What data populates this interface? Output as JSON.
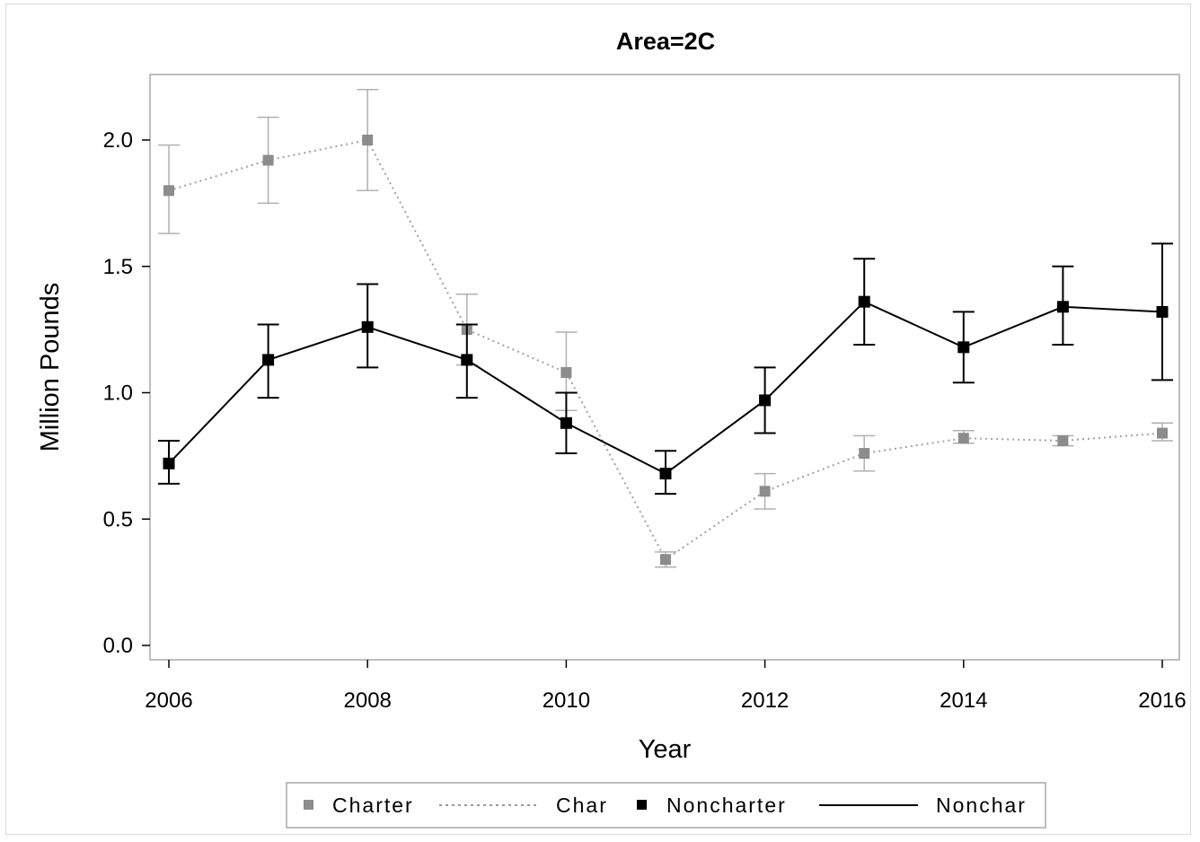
{
  "chart_data": {
    "type": "line",
    "title": "Area=2C",
    "xlabel": "Year",
    "ylabel": "Million Pounds",
    "xlim": [
      2006,
      2016
    ],
    "ylim": [
      0.0,
      2.2
    ],
    "xticks": [
      "2006",
      "2008",
      "2010",
      "2012",
      "2014",
      "2016"
    ],
    "yticks": [
      "0.0",
      "0.5",
      "1.0",
      "1.5",
      "2.0"
    ],
    "x": [
      2006,
      2007,
      2008,
      2009,
      2010,
      2011,
      2012,
      2013,
      2014,
      2015,
      2016
    ],
    "grid": false,
    "legend_position": "bottom",
    "series": [
      {
        "name": "Charter",
        "line_name": "Char",
        "color": "#8c8c8c",
        "errorbar_color": "#b0b0b0",
        "line_style": "dotted",
        "values": [
          1.8,
          1.92,
          2.0,
          1.25,
          1.08,
          0.34,
          0.61,
          0.76,
          0.82,
          0.81,
          0.84
        ],
        "lower": [
          1.63,
          1.75,
          1.8,
          1.11,
          0.93,
          0.31,
          0.54,
          0.69,
          0.8,
          0.79,
          0.81
        ],
        "upper": [
          1.98,
          2.09,
          2.2,
          1.39,
          1.24,
          0.37,
          0.68,
          0.83,
          0.85,
          0.83,
          0.88
        ]
      },
      {
        "name": "Noncharter",
        "line_name": "Nonchar",
        "color": "#000000",
        "errorbar_color": "#000000",
        "line_style": "solid",
        "values": [
          0.72,
          1.13,
          1.26,
          1.13,
          0.88,
          0.68,
          0.97,
          1.36,
          1.18,
          1.34,
          1.32
        ],
        "lower": [
          0.64,
          0.98,
          1.1,
          0.98,
          0.76,
          0.6,
          0.84,
          1.19,
          1.04,
          1.19,
          1.05
        ],
        "upper": [
          0.81,
          1.27,
          1.43,
          1.27,
          1.0,
          0.77,
          1.1,
          1.53,
          1.32,
          1.5,
          1.59
        ]
      }
    ]
  }
}
